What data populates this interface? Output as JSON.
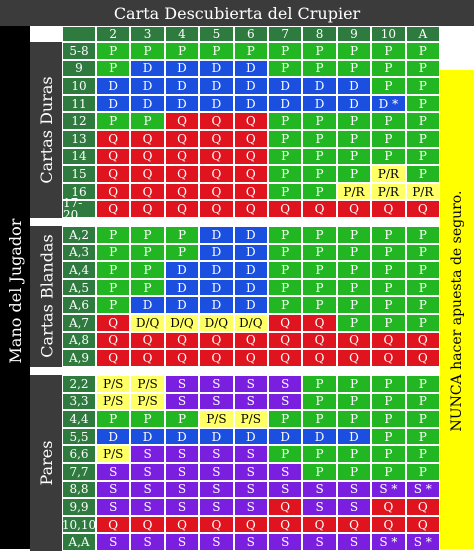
{
  "title": "Carta Descubierta del Crupier",
  "dealer_cards": [
    "2",
    "3",
    "4",
    "5",
    "6",
    "7",
    "8",
    "9",
    "10",
    "A"
  ],
  "left_label": "Mano del Jugador",
  "side_note": "NUNCA hacer apuesta de seguro.",
  "sections": [
    {
      "label": "Cartas Duras",
      "rows": [
        {
          "hand": "5-8",
          "cells": [
            "P",
            "P",
            "P",
            "P",
            "P",
            "P",
            "P",
            "P",
            "P",
            "P"
          ]
        },
        {
          "hand": "9",
          "cells": [
            "P",
            "D",
            "D",
            "D",
            "D",
            "P",
            "P",
            "P",
            "P",
            "P"
          ]
        },
        {
          "hand": "10",
          "cells": [
            "D",
            "D",
            "D",
            "D",
            "D",
            "D",
            "D",
            "D",
            "P",
            "P"
          ]
        },
        {
          "hand": "11",
          "cells": [
            "D",
            "D",
            "D",
            "D",
            "D",
            "D",
            "D",
            "D",
            "D *",
            "P"
          ]
        },
        {
          "hand": "12",
          "cells": [
            "P",
            "P",
            "Q",
            "Q",
            "Q",
            "P",
            "P",
            "P",
            "P",
            "P"
          ]
        },
        {
          "hand": "13",
          "cells": [
            "Q",
            "Q",
            "Q",
            "Q",
            "Q",
            "P",
            "P",
            "P",
            "P",
            "P"
          ]
        },
        {
          "hand": "14",
          "cells": [
            "Q",
            "Q",
            "Q",
            "Q",
            "Q",
            "P",
            "P",
            "P",
            "P",
            "P"
          ]
        },
        {
          "hand": "15",
          "cells": [
            "Q",
            "Q",
            "Q",
            "Q",
            "Q",
            "P",
            "P",
            "P",
            "P/R",
            "P"
          ]
        },
        {
          "hand": "16",
          "cells": [
            "Q",
            "Q",
            "Q",
            "Q",
            "Q",
            "P",
            "P",
            "P/R",
            "P/R",
            "P/R"
          ]
        },
        {
          "hand": "17-20",
          "cells": [
            "Q",
            "Q",
            "Q",
            "Q",
            "Q",
            "Q",
            "Q",
            "Q",
            "Q",
            "Q"
          ]
        }
      ]
    },
    {
      "label": "Cartas Blandas",
      "rows": [
        {
          "hand": "A,2",
          "cells": [
            "P",
            "P",
            "P",
            "D",
            "D",
            "P",
            "P",
            "P",
            "P",
            "P"
          ]
        },
        {
          "hand": "A,3",
          "cells": [
            "P",
            "P",
            "P",
            "D",
            "D",
            "P",
            "P",
            "P",
            "P",
            "P"
          ]
        },
        {
          "hand": "A,4",
          "cells": [
            "P",
            "P",
            "D",
            "D",
            "D",
            "P",
            "P",
            "P",
            "P",
            "P"
          ]
        },
        {
          "hand": "A,5",
          "cells": [
            "P",
            "P",
            "D",
            "D",
            "D",
            "P",
            "P",
            "P",
            "P",
            "P"
          ]
        },
        {
          "hand": "A,6",
          "cells": [
            "P",
            "D",
            "D",
            "D",
            "D",
            "P",
            "P",
            "P",
            "P",
            "P"
          ]
        },
        {
          "hand": "A,7",
          "cells": [
            "Q",
            "D/Q",
            "D/Q",
            "D/Q",
            "D/Q",
            "Q",
            "Q",
            "P",
            "P",
            "P"
          ]
        },
        {
          "hand": "A,8",
          "cells": [
            "Q",
            "Q",
            "Q",
            "Q",
            "Q",
            "Q",
            "Q",
            "Q",
            "Q",
            "Q"
          ]
        },
        {
          "hand": "A,9",
          "cells": [
            "Q",
            "Q",
            "Q",
            "Q",
            "Q",
            "Q",
            "Q",
            "Q",
            "Q",
            "Q"
          ]
        }
      ]
    },
    {
      "label": "Pares",
      "rows": [
        {
          "hand": "2,2",
          "cells": [
            "P/S",
            "P/S",
            "S",
            "S",
            "S",
            "S",
            "P",
            "P",
            "P",
            "P"
          ]
        },
        {
          "hand": "3,3",
          "cells": [
            "P/S",
            "P/S",
            "S",
            "S",
            "S",
            "S",
            "P",
            "P",
            "P",
            "P"
          ]
        },
        {
          "hand": "4,4",
          "cells": [
            "P",
            "P",
            "P",
            "P/S",
            "P/S",
            "P",
            "P",
            "P",
            "P",
            "P"
          ]
        },
        {
          "hand": "5,5",
          "cells": [
            "D",
            "D",
            "D",
            "D",
            "D",
            "D",
            "D",
            "D",
            "P",
            "P"
          ]
        },
        {
          "hand": "6,6",
          "cells": [
            "P/S",
            "S",
            "S",
            "S",
            "S",
            "P",
            "P",
            "P",
            "P",
            "P"
          ]
        },
        {
          "hand": "7,7",
          "cells": [
            "S",
            "S",
            "S",
            "S",
            "S",
            "S",
            "P",
            "P",
            "P",
            "P"
          ]
        },
        {
          "hand": "8,8",
          "cells": [
            "S",
            "S",
            "S",
            "S",
            "S",
            "S",
            "S",
            "S",
            "S *",
            "S *"
          ]
        },
        {
          "hand": "9,9",
          "cells": [
            "S",
            "S",
            "S",
            "S",
            "S",
            "Q",
            "S",
            "S",
            "Q",
            "Q"
          ]
        },
        {
          "hand": "10,10",
          "cells": [
            "Q",
            "Q",
            "Q",
            "Q",
            "Q",
            "Q",
            "Q",
            "Q",
            "Q",
            "Q"
          ]
        },
        {
          "hand": "A,A",
          "cells": [
            "S",
            "S",
            "S",
            "S",
            "S",
            "S",
            "S",
            "S",
            "S *",
            "S *"
          ]
        }
      ]
    }
  ],
  "colors": {
    "P": "#22b622",
    "D": "#1a4fe0",
    "Q": "#e0141e",
    "S": "#7a1ee0",
    "yellow": "#ffff66",
    "header_green": "#2f7a3f",
    "title_bar": "#3b3b3b",
    "side_black": "#000000",
    "side_bar": "#ffff00"
  }
}
